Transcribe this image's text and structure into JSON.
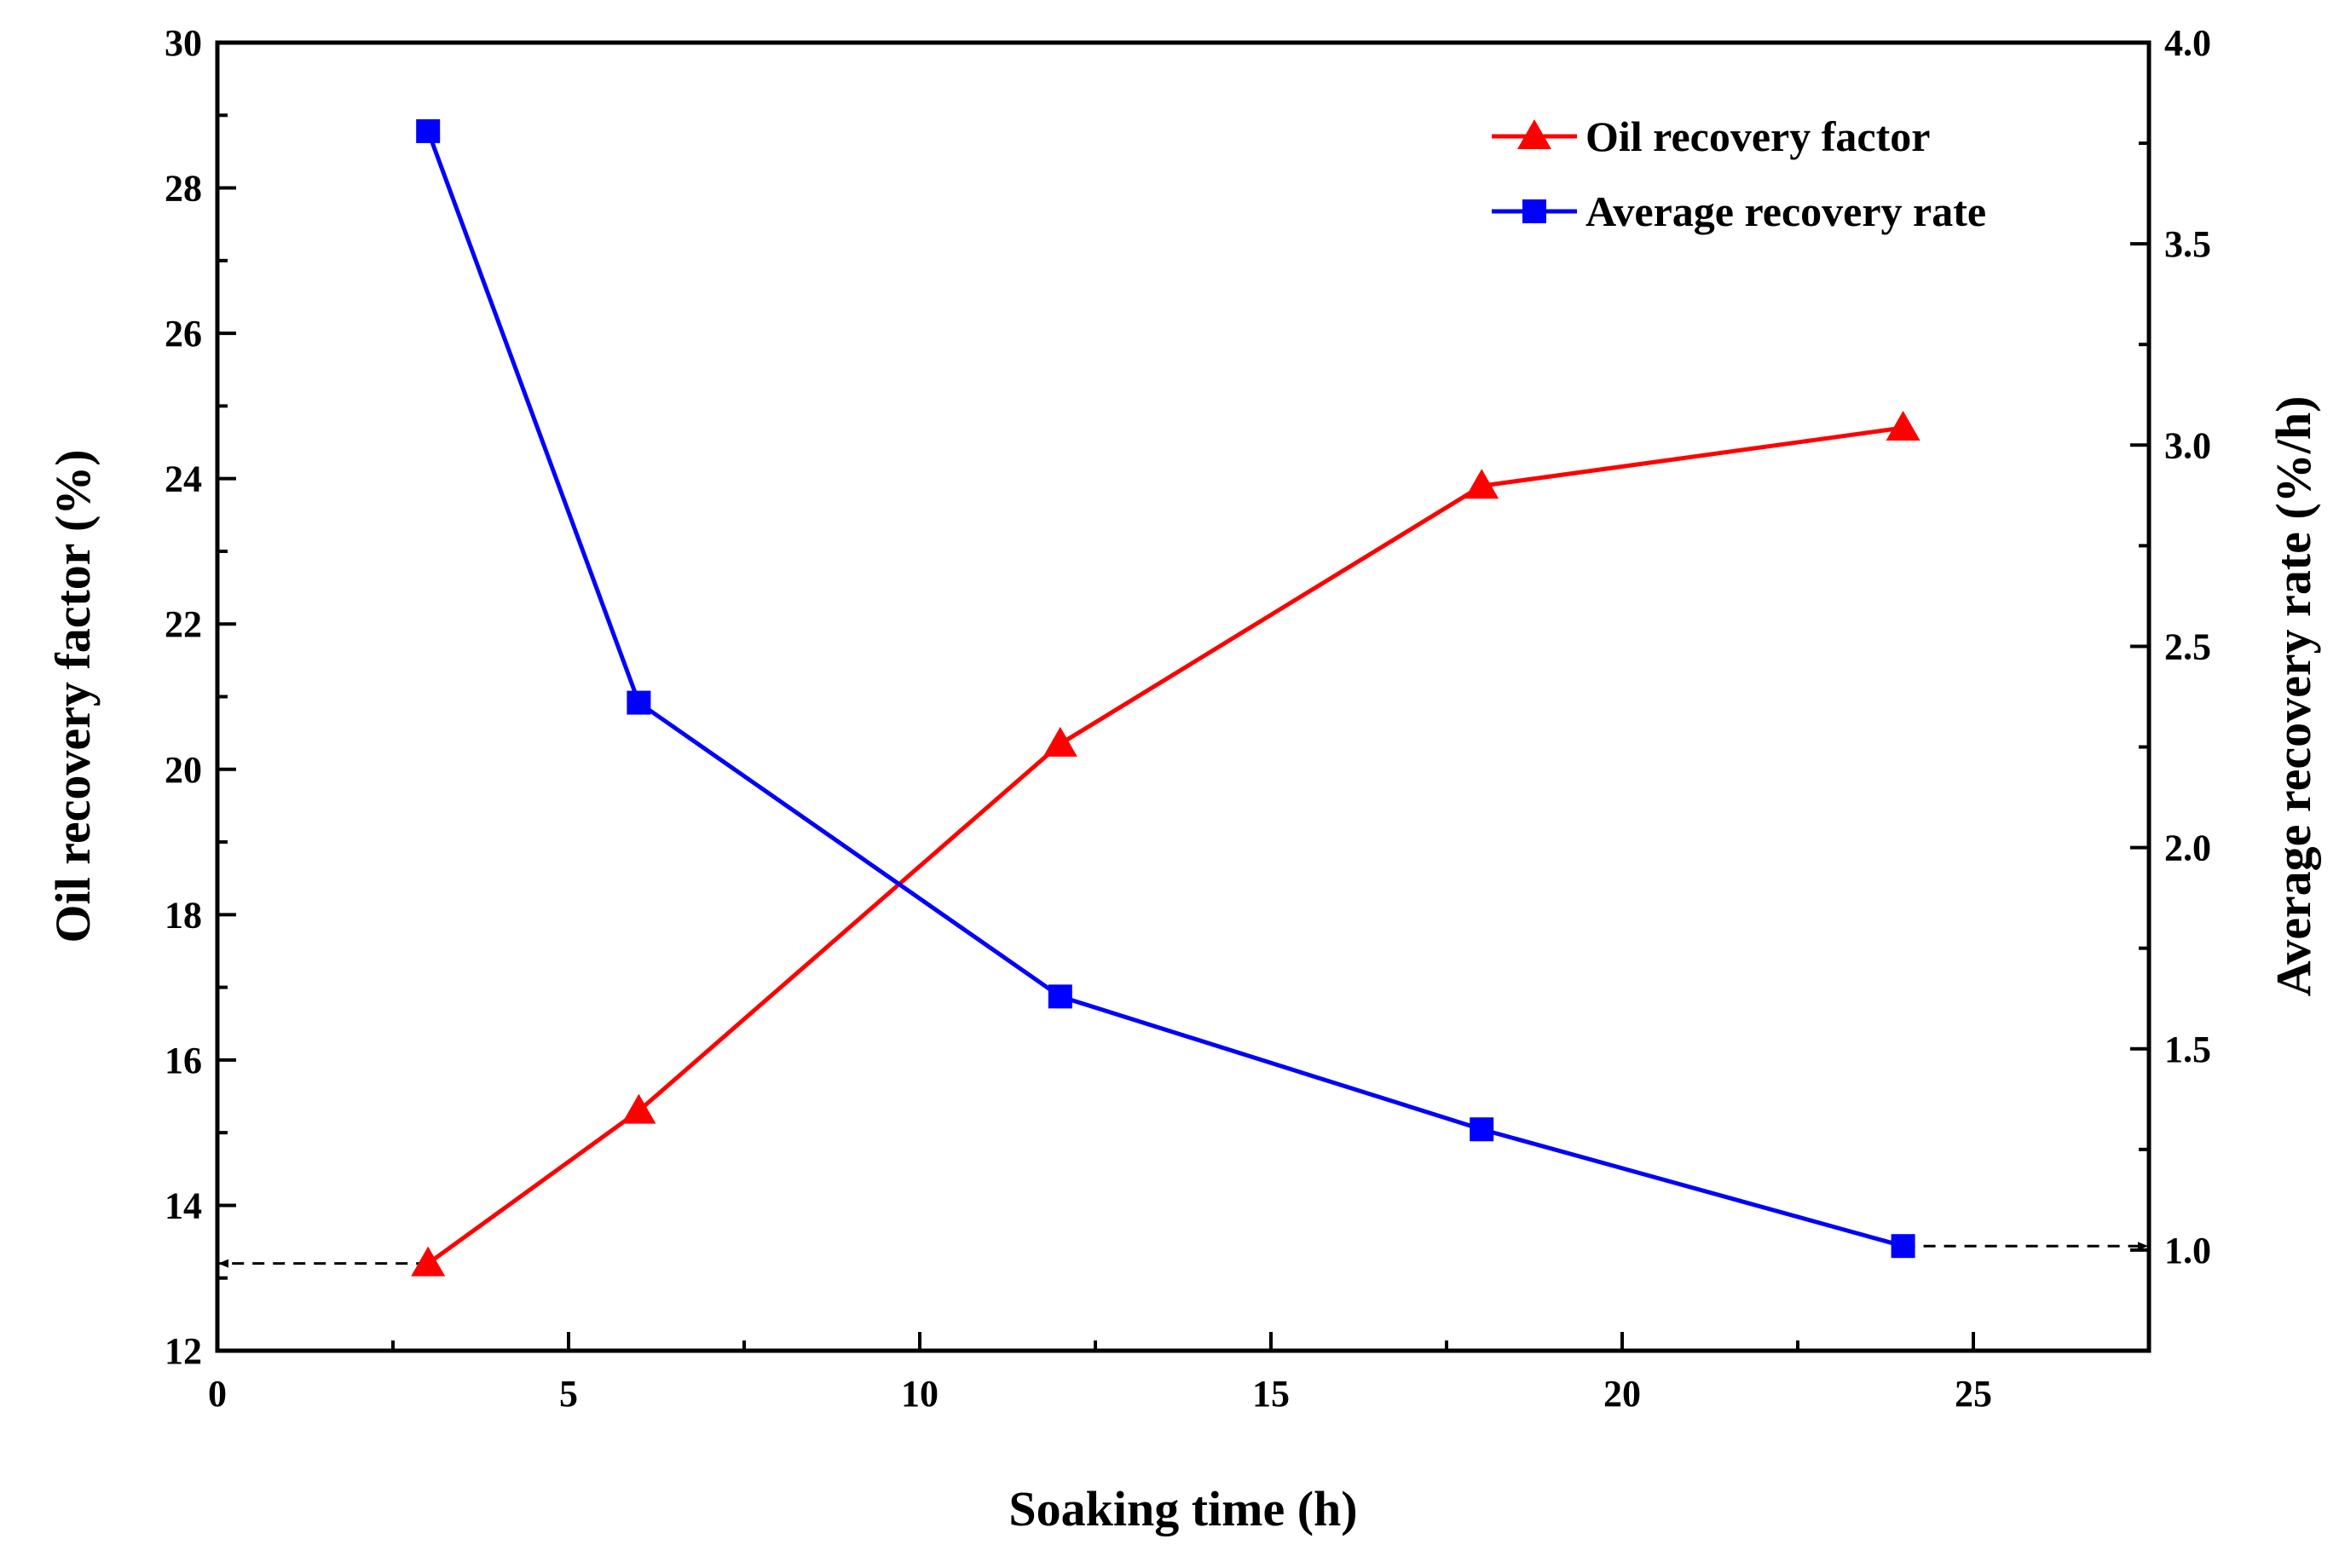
{
  "chart_data": {
    "type": "line",
    "title": "",
    "xlabel": "Soaking time (h)",
    "ylabel": "Oil recovery factor (%)",
    "y2label": "Average recovery rate (%/h)",
    "xlim": [
      0,
      27.5
    ],
    "ylim": [
      12,
      30
    ],
    "y2lim": [
      0.75,
      4.0
    ],
    "x_ticks": [
      "0",
      "5",
      "10",
      "15",
      "20",
      "25"
    ],
    "y_ticks": [
      "12",
      "14",
      "16",
      "18",
      "20",
      "22",
      "24",
      "26",
      "28",
      "30"
    ],
    "y2_ticks": [
      "1.0",
      "1.5",
      "2.0",
      "2.5",
      "3.0",
      "3.5",
      "4.0"
    ],
    "grid": false,
    "legend_position": "top-right",
    "series": [
      {
        "name": "Oil recovery factor",
        "axis": "left",
        "color": "#ff0000",
        "marker": "triangle",
        "x": [
          3,
          6,
          12,
          18,
          24
        ],
        "values": [
          13.2,
          15.3,
          20.35,
          23.9,
          24.7
        ]
      },
      {
        "name": "Average recovery rate",
        "axis": "right",
        "color": "#0000ff",
        "marker": "square",
        "x": [
          3,
          6,
          12,
          18,
          24
        ],
        "values": [
          3.78,
          2.36,
          1.63,
          1.3,
          1.01
        ]
      }
    ],
    "annotations": [
      {
        "type": "dashed-arrow",
        "axis": "left",
        "from_x": 3,
        "y": 13.2,
        "direction": "left"
      },
      {
        "type": "dashed-arrow",
        "axis": "right",
        "from_x": 24,
        "y": 1.01,
        "direction": "right"
      }
    ]
  }
}
